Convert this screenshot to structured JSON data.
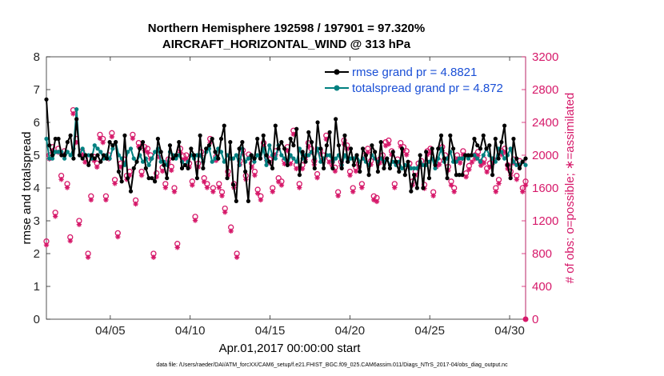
{
  "chart_data": {
    "type": "line",
    "title_line1": "Northern Hemisphere 192598 / 197901 = 97.320%",
    "title_line2": "AIRCRAFT_HORIZONTAL_WIND @ 313 hPa",
    "xlabel": "Apr.01,2017 00:00:00 start",
    "ylabel_left": "rmse and totalspread",
    "ylabel_right": "# of obs: o=possible; ∗=assimilated",
    "footer": "data file: /Users/raeder/DAI/ATM_forcXX/CAM6_setup/f.e21.FHIST_BGC.f09_025.CAM6assim.011/Diags_NTrS_2017-04/obs_diag_output.nc",
    "x_ticks": [
      {
        "label": "04/05",
        "day": 5
      },
      {
        "label": "04/10",
        "day": 10
      },
      {
        "label": "04/15",
        "day": 15
      },
      {
        "label": "04/20",
        "day": 20
      },
      {
        "label": "04/25",
        "day": 25
      },
      {
        "label": "04/30",
        "day": 30
      }
    ],
    "xlim": [
      1,
      31
    ],
    "ylim_left": [
      0,
      8
    ],
    "yticks_left": [
      "0",
      "1",
      "2",
      "3",
      "4",
      "5",
      "6",
      "7",
      "8"
    ],
    "ylim_right": [
      0,
      3200
    ],
    "yticks_right": [
      "0",
      "400",
      "800",
      "1200",
      "1600",
      "2000",
      "2400",
      "2800",
      "3200"
    ],
    "series": [
      {
        "name": "rmse",
        "legend": "rmse grand pr = 4.8821",
        "color": "#000000",
        "values": [
          6.7,
          5.3,
          5.0,
          5.5,
          5.5,
          5.0,
          5.0,
          5.4,
          5.6,
          4.9,
          6.1,
          5.0,
          4.9,
          5.0,
          4.7,
          5.0,
          4.9,
          5.0,
          4.8,
          5.0,
          4.9,
          5.4,
          5.3,
          5.4,
          4.5,
          4.2,
          5.6,
          4.3,
          3.9,
          4.6,
          4.8,
          5.2,
          5.4,
          4.6,
          4.3,
          4.3,
          4.2,
          5.5,
          5.1,
          4.7,
          4.3,
          5.3,
          4.9,
          5.0,
          5.4,
          4.6,
          4.7,
          4.6,
          5.2,
          5.0,
          4.3,
          5.6,
          4.6,
          5.2,
          5.3,
          5.5,
          5.1,
          4.9,
          5.5,
          5.9,
          4.3,
          5.4,
          4.1,
          3.6,
          5.2,
          5.4,
          4.5,
          3.6,
          5.0,
          4.9,
          5.5,
          4.9,
          5.6,
          5.0,
          4.8,
          4.6,
          5.9,
          5.2,
          5.4,
          5.2,
          4.7,
          5.5,
          5.3,
          5.8,
          4.4,
          5.1,
          4.8,
          5.7,
          5.4,
          4.6,
          6.0,
          5.2,
          4.6,
          5.3,
          5.7,
          4.6,
          6.1,
          5.3,
          4.6,
          5.6,
          4.8,
          5.2,
          4.7,
          5.0,
          4.5,
          5.2,
          5.0,
          4.4,
          5.3,
          5.1,
          4.5,
          5.4,
          4.6,
          4.9,
          4.6,
          5.1,
          4.8,
          4.5,
          5.2,
          4.4,
          4.8,
          3.9,
          4.4,
          4.0,
          5.0,
          4.0,
          5.1,
          4.3,
          5.2,
          4.7,
          5.2,
          5.6,
          4.9,
          4.3,
          5.6,
          5.2,
          4.4,
          4.4,
          4.4,
          5.0,
          5.0,
          5.0,
          5.5,
          5.3,
          5.2,
          5.6,
          5.2,
          5.3,
          4.4,
          5.5,
          4.9,
          5.4,
          5.9,
          4.7,
          4.3,
          5.5,
          4.9,
          4.6,
          4.8,
          4.9
        ],
        "style": "line-with-filled-dot-markers"
      },
      {
        "name": "totalspread",
        "legend": "totalspread grand pr = 4.872",
        "color": "#008080",
        "values": [
          5.5,
          4.9,
          4.9,
          5.1,
          5.1,
          5.1,
          4.9,
          5.1,
          5.0,
          5.2,
          6.4,
          5.0,
          5.2,
          5.0,
          5.0,
          4.9,
          5.3,
          5.2,
          5.1,
          4.9,
          5.0,
          4.9,
          5.2,
          5.4,
          5.0,
          4.9,
          4.7,
          5.1,
          5.2,
          4.9,
          4.8,
          5.0,
          4.8,
          4.9,
          4.7,
          4.9,
          5.1,
          5.2,
          4.8,
          4.8,
          4.7,
          5.1,
          5.0,
          4.9,
          5.0,
          4.8,
          4.7,
          4.8,
          5.0,
          4.9,
          5.0,
          5.0,
          4.8,
          5.1,
          5.2,
          4.8,
          4.9,
          5.2,
          5.1,
          4.8,
          5.0,
          4.9,
          4.9,
          5.0,
          4.7,
          5.2,
          4.8,
          4.9,
          5.0,
          4.8,
          5.0,
          4.9,
          5.2,
          4.7,
          5.3,
          5.0,
          4.9,
          5.3,
          5.0,
          4.9,
          4.7,
          5.0,
          4.9,
          4.8,
          5.2,
          4.9,
          5.0,
          5.0,
          5.1,
          4.9,
          5.2,
          4.8,
          4.9,
          5.0,
          5.0,
          4.8,
          4.9,
          5.0,
          4.7,
          5.0,
          4.8,
          4.9,
          4.9,
          5.0,
          4.8,
          4.9,
          4.8,
          4.7,
          5.0,
          4.9,
          4.8,
          4.9,
          4.8,
          4.9,
          4.7,
          4.8,
          4.7,
          4.8,
          4.6,
          4.7,
          4.7,
          4.6,
          4.6,
          4.6,
          4.8,
          4.7,
          4.7,
          4.8,
          4.9,
          4.6,
          4.9,
          5.2,
          4.8,
          4.9,
          5.1,
          4.8,
          4.8,
          4.9,
          4.9,
          5.0,
          4.9,
          5.0,
          5.0,
          4.9,
          4.8,
          5.0,
          5.2,
          5.0,
          4.9,
          4.8,
          5.2,
          5.1,
          4.9,
          5.0,
          5.2,
          4.8,
          4.7,
          4.7,
          4.8,
          4.7
        ],
        "style": "line-with-filled-dot-markers"
      },
      {
        "name": "obs possible",
        "color": "#d6196a",
        "axis": "right",
        "style": "open-circle-markers",
        "values": [
          950,
          2000,
          2100,
          1300,
          2080,
          1750,
          2050,
          1650,
          1000,
          2550,
          2200,
          1200,
          2050,
          1960,
          800,
          1500,
          1980,
          1900,
          2250,
          2200,
          1500,
          2000,
          2270,
          1700,
          1050,
          1900,
          1950,
          1750,
          1800,
          2250,
          1450,
          2150,
          1800,
          2100,
          2080,
          2000,
          800,
          1780,
          2020,
          1850,
          1650,
          1950,
          1860,
          1600,
          920,
          2080,
          1990,
          2000,
          1900,
          1680,
          1250,
          1900,
          2040,
          1720,
          1650,
          2200,
          1600,
          1980,
          1650,
          1550,
          1350,
          1800,
          1120,
          1650,
          800,
          1930,
          2060,
          1750,
          2010,
          1900,
          1800,
          1580,
          1500,
          2150,
          1980,
          1950,
          1600,
          2050,
          1720,
          1680,
          1940,
          2100,
          1940,
          2300,
          1880,
          1650,
          1880,
          1990,
          2150,
          2080,
          1930,
          1770,
          2060,
          2000,
          2240,
          1960,
          1920,
          1850,
          1550,
          1920,
          2180,
          2120,
          1800,
          1600,
          1850,
          1900,
          1650,
          2000,
          2080,
          1930,
          1500,
          1480,
          1950,
          2000,
          2160,
          2180,
          2050,
          1650,
          1950,
          2150,
          2100,
          2050,
          1900,
          1680,
          1800,
          1900,
          1930,
          1640,
          2050,
          2080,
          1550,
          1900,
          1930,
          2100,
          2000,
          1860,
          1680,
          1600,
          2000,
          1950,
          2050,
          1780,
          1870,
          1960,
          2000,
          2040,
          1920,
          1950,
          1840,
          1900,
          1950,
          1600,
          1700,
          2050,
          2080,
          1880,
          1800,
          1950,
          1750,
          1930,
          1600,
          1680
        ]
      }
    ]
  }
}
